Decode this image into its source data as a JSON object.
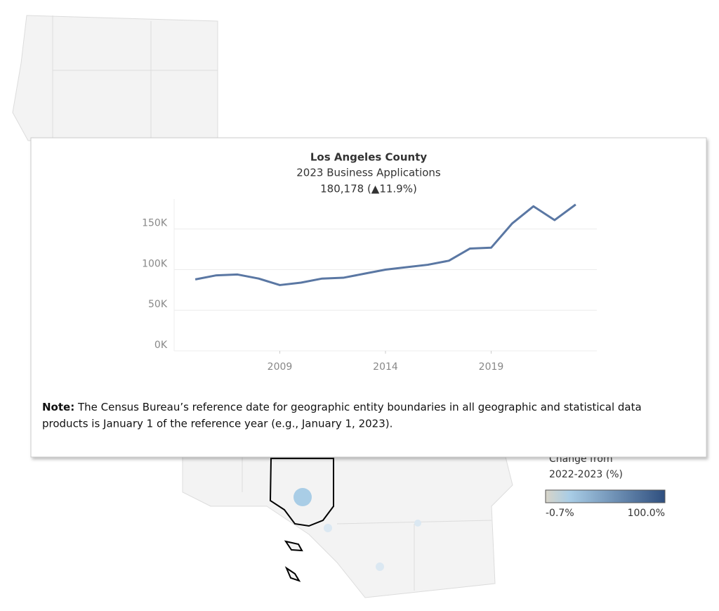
{
  "chart_data": {
    "type": "line",
    "title": "Los Angeles County",
    "subtitle": "2023 Business Applications",
    "summary": "180,178 (▲11.9%)",
    "x": [
      2005,
      2006,
      2007,
      2008,
      2009,
      2010,
      2011,
      2012,
      2013,
      2014,
      2015,
      2016,
      2017,
      2018,
      2019,
      2020,
      2021,
      2022,
      2023
    ],
    "series": [
      {
        "name": "Business Applications",
        "color": "#5a77a3",
        "values": [
          88000,
          93000,
          94000,
          89000,
          81000,
          84000,
          89000,
          90000,
          95000,
          100000,
          103000,
          106000,
          111000,
          126000,
          127000,
          157000,
          178000,
          161000,
          180178
        ]
      }
    ],
    "xlim": [
      2004,
      2024
    ],
    "xticks": [
      2009,
      2014,
      2019
    ],
    "ylim": [
      0,
      187000
    ],
    "yticks": [
      {
        "value": 0,
        "label": "0K"
      },
      {
        "value": 50000,
        "label": "50K"
      },
      {
        "value": 100000,
        "label": "100K"
      },
      {
        "value": 150000,
        "label": "150K"
      }
    ],
    "grid": true
  },
  "note": {
    "lead": "Note:",
    "text": "The Census Bureau’s reference date for geographic entity boundaries in all geographic and statistical data",
    "text2": "products is January 1 of the reference year (e.g., January 1, 2023)."
  },
  "legend": {
    "title": "Change from",
    "title2": "2022-2023 (%)",
    "min_label": "-0.7%",
    "max_label": "100.0%"
  }
}
